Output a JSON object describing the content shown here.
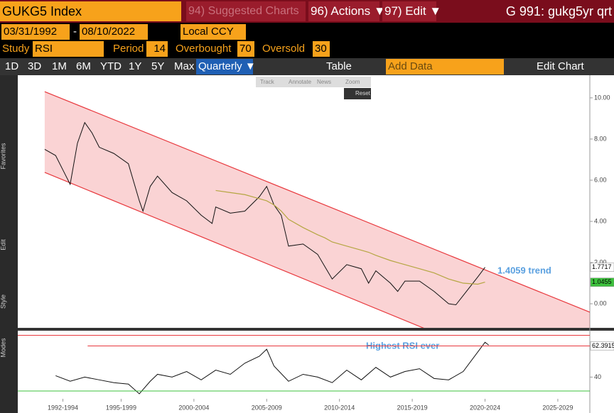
{
  "toolbar": {
    "security": "GUKG5 Index",
    "suggested": "94) Suggested Charts",
    "actions": "96) Actions ▼",
    "edit": "97) Edit ▼",
    "function": "G 991: gukg5yr qrt",
    "start_date": "03/31/1992",
    "dash": "-",
    "end_date": "08/10/2022",
    "currency": "Local CCY",
    "study_label": "Study",
    "study": "RSI",
    "period_label": "Period",
    "period": "14",
    "overbought_label": "Overbought",
    "overbought": "70",
    "oversold_label": "Oversold",
    "oversold": "30",
    "ranges": [
      "1D",
      "3D",
      "1M",
      "6M",
      "YTD",
      "1Y",
      "5Y",
      "Max"
    ],
    "frequency": "Quarterly ▼",
    "table": "Table",
    "add_data": "Add Data",
    "edit_chart": "Edit Chart",
    "popup": [
      "Track",
      "Annotate",
      "News",
      "Zoom"
    ],
    "reset": "Reset",
    "side_labels": [
      "Favorites",
      "Edit",
      "Style",
      "Modes"
    ]
  },
  "chart_data": [
    {
      "type": "line",
      "annotation": "1.4059 trend",
      "x": [
        1992.25,
        1993,
        1993.5,
        1994,
        1994.5,
        1995,
        1995.5,
        1996,
        1997,
        1998,
        1998.75,
        1999,
        1999.5,
        2000,
        2001,
        2002,
        2003,
        2003.75,
        2004,
        2005,
        2006,
        2007,
        2007.5,
        2008,
        2008.5,
        2009,
        2010,
        2011,
        2011.5,
        2012,
        2013,
        2014,
        2014.5,
        2015,
        2016,
        2016.5,
        2017,
        2018,
        2019,
        2020,
        2020.5,
        2021,
        2022,
        2022.5
      ],
      "series": [
        {
          "name": "GUKG5",
          "color": "#111111",
          "values": [
            7.5,
            7.2,
            6.5,
            5.8,
            7.8,
            8.8,
            8.3,
            7.6,
            7.3,
            6.8,
            5.0,
            4.5,
            5.7,
            6.2,
            5.4,
            5.0,
            4.3,
            3.9,
            4.7,
            4.4,
            4.5,
            5.2,
            5.7,
            4.8,
            4.3,
            2.8,
            2.9,
            2.4,
            1.8,
            1.2,
            1.9,
            1.7,
            1.0,
            1.6,
            1.0,
            0.6,
            1.1,
            1.1,
            0.6,
            0.0,
            -0.05,
            0.4,
            1.3,
            1.77
          ]
        },
        {
          "name": "Moving average",
          "color": "#b5a642",
          "values": [
            null,
            null,
            null,
            null,
            null,
            null,
            null,
            null,
            null,
            null,
            null,
            null,
            null,
            null,
            null,
            null,
            null,
            null,
            5.5,
            5.4,
            5.3,
            5.1,
            5.0,
            4.8,
            4.5,
            4.1,
            3.7,
            3.35,
            3.2,
            3.0,
            2.8,
            2.6,
            2.5,
            2.35,
            2.1,
            2.0,
            1.9,
            1.7,
            1.5,
            1.2,
            1.1,
            1.0,
            0.95,
            1.05
          ]
        }
      ],
      "channel": {
        "x": [
          1992.25,
          2029.7
        ],
        "upper": [
          10.3,
          -0.41
        ],
        "lower": [
          6.38,
          -4.5
        ],
        "color": "#e8383d"
      },
      "badges": [
        {
          "value": 1.7717,
          "label": "1.7717",
          "color": "#ffffff"
        },
        {
          "value": 1.0455,
          "label": "1.0455",
          "color": "#3cc13c"
        }
      ],
      "xlim": [
        1990.4,
        2029.7
      ],
      "ylim": [
        -1.17,
        11.03
      ],
      "yticks": [
        {
          "value": 0,
          "label": "0.00"
        },
        {
          "value": 2,
          "label": "2.00"
        },
        {
          "value": 4,
          "label": "4.00"
        },
        {
          "value": 6,
          "label": "6.00"
        },
        {
          "value": 8,
          "label": "8.00"
        },
        {
          "value": 10,
          "label": "10.00"
        }
      ]
    },
    {
      "type": "line",
      "annotation": "Highest RSI ever",
      "x": [
        1993,
        1994,
        1995,
        1996,
        1997,
        1998,
        1998.75,
        1999.5,
        2000,
        2001,
        2002,
        2003,
        2004,
        2005,
        2006,
        2007,
        2007.5,
        2008,
        2009,
        2010,
        2011,
        2012,
        2013,
        2014,
        2015,
        2016,
        2017,
        2018,
        2019,
        2020,
        2021,
        2022,
        2022.5,
        2022.75
      ],
      "series": [
        {
          "name": "RSI",
          "color": "#111111",
          "values": [
            41,
            37,
            40,
            38,
            36,
            35,
            28,
            37,
            42,
            40,
            44,
            38,
            45,
            42,
            50,
            55,
            60,
            48,
            37,
            42,
            40,
            36,
            45,
            38,
            47,
            40,
            44,
            46,
            39,
            38,
            44,
            58,
            65,
            63
          ]
        }
      ],
      "hlines": [
        {
          "value": 70,
          "color": "#e8383d"
        },
        {
          "value": 30,
          "color": "#3cc13c"
        }
      ],
      "max_line": {
        "x": 1995.2,
        "value": 62.3915,
        "color": "#e8383d"
      },
      "badges": [
        {
          "value": 62.3915,
          "label": "62.3915",
          "color": "#ffffff"
        }
      ],
      "xlim": [
        1990.4,
        2029.7
      ],
      "ylim": [
        24.4,
        72.3
      ],
      "yticks": [
        40
      ],
      "xticks": [
        {
          "value": 1993.5,
          "label": "1992-1994"
        },
        {
          "value": 1997.5,
          "label": "1995-1999"
        },
        {
          "value": 2002.5,
          "label": "2000-2004"
        },
        {
          "value": 2007.5,
          "label": "2005-2009"
        },
        {
          "value": 2012.5,
          "label": "2010-2014"
        },
        {
          "value": 2017.5,
          "label": "2015-2019"
        },
        {
          "value": 2022.5,
          "label": "2020-2024"
        },
        {
          "value": 2027.5,
          "label": "2025-2029"
        }
      ]
    }
  ]
}
